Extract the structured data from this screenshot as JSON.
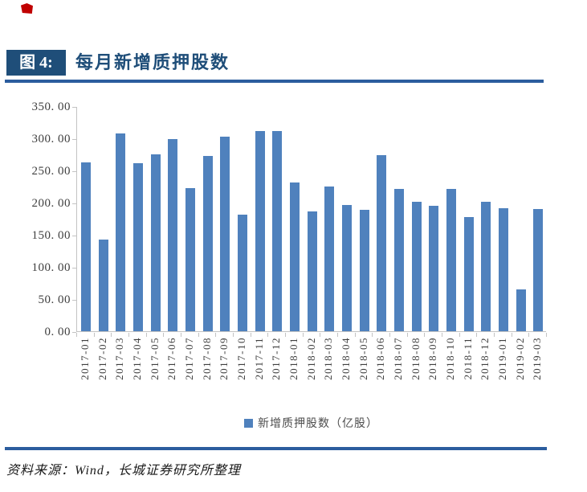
{
  "figure": {
    "label": "图 4:",
    "title": "每月新增质押股数"
  },
  "chart_data": {
    "type": "bar",
    "title": "每月新增质押股数",
    "categories": [
      "2017-01",
      "2017-02",
      "2017-03",
      "2017-04",
      "2017-05",
      "2017-06",
      "2017-07",
      "2017-08",
      "2017-09",
      "2017-10",
      "2017-11",
      "2017-12",
      "2018-01",
      "2018-02",
      "2018-03",
      "2018-04",
      "2018-05",
      "2018-06",
      "2018-07",
      "2018-08",
      "2018-09",
      "2018-10",
      "2018-11",
      "2018-12",
      "2019-01",
      "2019-02",
      "2019-03"
    ],
    "values": [
      262,
      143,
      307,
      261,
      275,
      299,
      222,
      272,
      302,
      181,
      311,
      311,
      231,
      186,
      225,
      196,
      189,
      274,
      221,
      201,
      195,
      221,
      177,
      201,
      191,
      65,
      190
    ],
    "series_name": "新增质押股数（亿股）",
    "legend_position": "bottom",
    "xlabel": "",
    "ylabel": "",
    "ylim": [
      0,
      350
    ],
    "ytick_step": 50,
    "ytick_labels": [
      "350. 00",
      "300. 00",
      "250. 00",
      "200. 00",
      "150. 00",
      "100. 00",
      "50. 00",
      "0. 00"
    ],
    "grid": false,
    "unit": "亿股"
  },
  "source": {
    "text": "资料来源：Wind，长城证券研究所整理"
  },
  "colors": {
    "title_box_bg": "#1F4E79",
    "title_text": "#1F4E79",
    "rule": "#2B5D9E",
    "bar": "#4F81BD",
    "axis": "#C3C3C3",
    "tick_label": "#3F3F3F",
    "red_mark": "#C00000"
  }
}
